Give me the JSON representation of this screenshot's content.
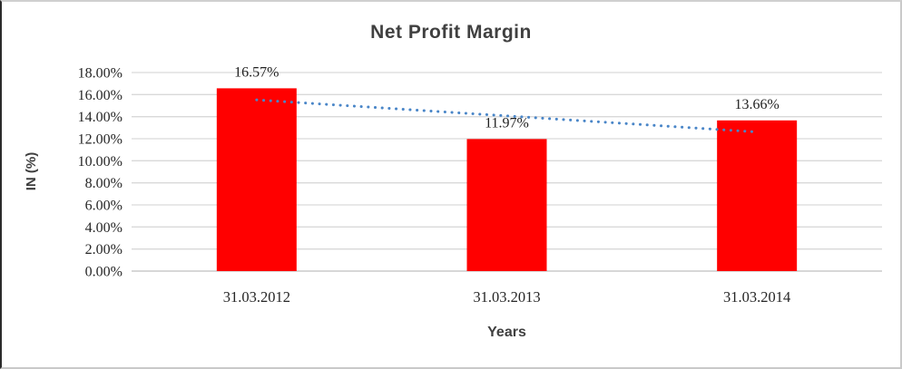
{
  "chart_data": {
    "type": "bar",
    "title": "Net Profit Margin",
    "xlabel": "Years",
    "ylabel": "IN (%)",
    "categories": [
      "31.03.2012",
      "31.03.2013",
      "31.03.2014"
    ],
    "values": [
      16.57,
      11.97,
      13.66
    ],
    "data_labels": [
      "16.57%",
      "11.97%",
      "13.66%"
    ],
    "yticks": [
      "0.00%",
      "2.00%",
      "4.00%",
      "6.00%",
      "8.00%",
      "10.00%",
      "12.00%",
      "14.00%",
      "16.00%",
      "18.00%"
    ],
    "ylim": [
      0,
      18
    ],
    "grid": true,
    "legend_position": "none",
    "bar_color": "#ff0000",
    "gridline_color": "#d9d9d9",
    "axis_line_color": "#bfbfbf",
    "trendline": {
      "type": "linear",
      "style": "dotted",
      "color": "#4a86c8"
    }
  }
}
